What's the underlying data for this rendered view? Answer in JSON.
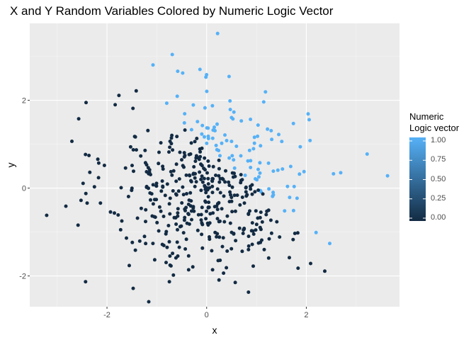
{
  "title": "X and Y Random Variables Colored by Numeric Logic Vector",
  "chart_data": {
    "type": "scatter",
    "title": "X and Y Random Variables Colored by Numeric Logic Vector",
    "xlabel": "x",
    "ylabel": "y",
    "xlim": [
      -3.55,
      3.87
    ],
    "ylim": [
      -2.7,
      3.75
    ],
    "x_ticks": [
      "-2",
      "0",
      "2"
    ],
    "y_ticks": [
      "-2",
      "0",
      "2"
    ],
    "grid": true,
    "legend": {
      "title_line1": "Numeric",
      "title_line2": "Logic vector",
      "placement": "right",
      "breaks": [
        "1.00",
        "0.75",
        "0.50",
        "0.25",
        "0.00"
      ],
      "low_color": "#132B43",
      "high_color": "#56B1F7"
    },
    "n_points": 500,
    "colored_by": "x + y > 1",
    "points_sample": [
      [
        0.22,
        3.52
      ],
      [
        -0.69,
        3.04
      ],
      [
        -0.58,
        2.66
      ],
      [
        3.63,
        0.28
      ],
      [
        -3.21,
        -0.62
      ],
      [
        -2.43,
        -2.13
      ],
      [
        0.84,
        -2.37
      ],
      [
        -1.76,
        2.11
      ],
      [
        2.47,
        -1.26
      ],
      [
        2.37,
        -1.89
      ],
      [
        2.69,
        0.35
      ],
      [
        1.18,
        2.19
      ],
      [
        0.45,
        2.54
      ],
      [
        -0.59,
        2.09
      ],
      [
        1.74,
        1.47
      ]
    ]
  }
}
